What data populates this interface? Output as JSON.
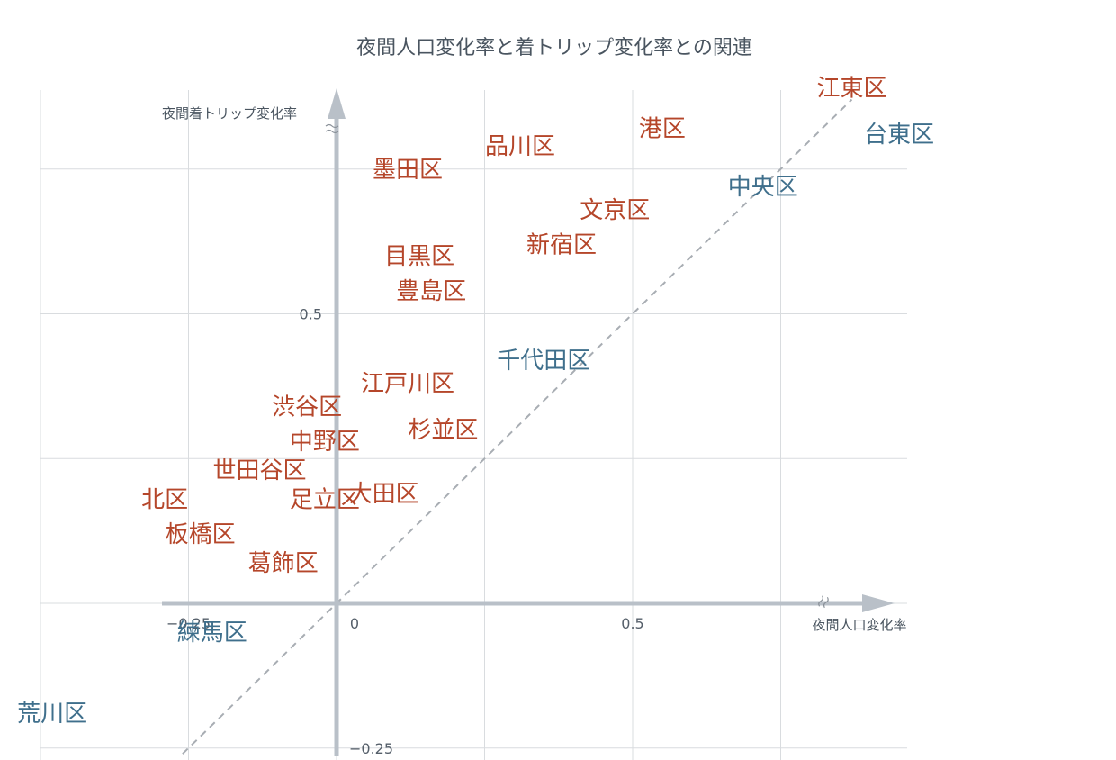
{
  "chart_data": {
    "type": "scatter",
    "title": "夜間人口変化率と着トリップ変化率との関連",
    "xlabel": "夜間人口変化率",
    "ylabel": "夜間着トリップ変化率",
    "xlim": [
      -0.5,
      1.0
    ],
    "ylim": [
      -0.25,
      1.0
    ],
    "x_ticks": [
      {
        "value": -0.25,
        "label": "−0.25"
      },
      {
        "value": 0,
        "label": "0"
      },
      {
        "value": 0.5,
        "label": "0.5"
      }
    ],
    "y_ticks": [
      {
        "value": 0.5,
        "label": "0.5"
      },
      {
        "value": -0.25,
        "label": "−0.25"
      }
    ],
    "reference_line": "y = x",
    "grid": true,
    "colors": {
      "above": "#b5462a",
      "below": "#3f6f8c",
      "axis": "#b9c0c8",
      "grid": "#d9dcdf",
      "refline": "#a8adb3"
    },
    "points": [
      {
        "name": "江東区",
        "x": 0.87,
        "y": 0.89,
        "group": "above"
      },
      {
        "name": "港区",
        "x": 0.55,
        "y": 0.82,
        "group": "above"
      },
      {
        "name": "品川区",
        "x": 0.31,
        "y": 0.79,
        "group": "above"
      },
      {
        "name": "墨田区",
        "x": 0.12,
        "y": 0.75,
        "group": "above"
      },
      {
        "name": "文京区",
        "x": 0.47,
        "y": 0.68,
        "group": "above"
      },
      {
        "name": "新宿区",
        "x": 0.38,
        "y": 0.62,
        "group": "above"
      },
      {
        "name": "目黒区",
        "x": 0.14,
        "y": 0.6,
        "group": "above"
      },
      {
        "name": "豊島区",
        "x": 0.16,
        "y": 0.54,
        "group": "above"
      },
      {
        "name": "江戸川区",
        "x": 0.12,
        "y": 0.38,
        "group": "above"
      },
      {
        "name": "渋谷区",
        "x": -0.05,
        "y": 0.34,
        "group": "above"
      },
      {
        "name": "杉並区",
        "x": 0.18,
        "y": 0.3,
        "group": "above"
      },
      {
        "name": "中野区",
        "x": -0.02,
        "y": 0.28,
        "group": "above"
      },
      {
        "name": "世田谷区",
        "x": -0.13,
        "y": 0.23,
        "group": "above"
      },
      {
        "name": "大田区",
        "x": 0.08,
        "y": 0.19,
        "group": "above"
      },
      {
        "name": "北区",
        "x": -0.29,
        "y": 0.18,
        "group": "above"
      },
      {
        "name": "足立区",
        "x": -0.02,
        "y": 0.18,
        "group": "above"
      },
      {
        "name": "板橋区",
        "x": -0.23,
        "y": 0.12,
        "group": "above"
      },
      {
        "name": "葛飾区",
        "x": -0.09,
        "y": 0.07,
        "group": "above"
      },
      {
        "name": "台東区",
        "x": 0.95,
        "y": 0.81,
        "group": "below"
      },
      {
        "name": "中央区",
        "x": 0.72,
        "y": 0.72,
        "group": "below"
      },
      {
        "name": "千代田区",
        "x": 0.35,
        "y": 0.42,
        "group": "below"
      },
      {
        "name": "練馬区",
        "x": -0.21,
        "y": -0.05,
        "group": "below"
      },
      {
        "name": "荒川区",
        "x": -0.48,
        "y": -0.19,
        "group": "below"
      }
    ]
  }
}
